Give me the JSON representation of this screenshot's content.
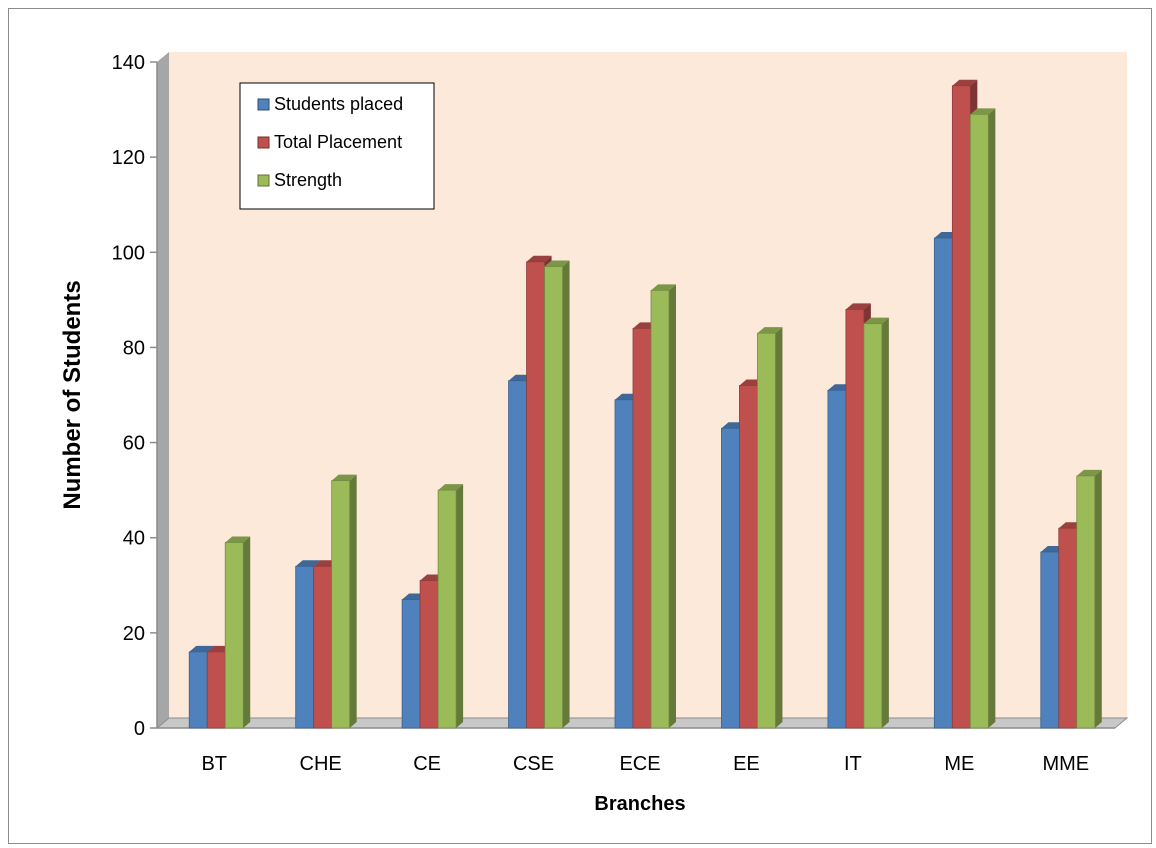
{
  "chart_data": {
    "type": "bar",
    "title": "",
    "xlabel": "Branches",
    "ylabel": "Number of Students",
    "ylim": [
      0,
      140
    ],
    "yticks": [
      0,
      20,
      40,
      60,
      80,
      100,
      120,
      140
    ],
    "categories": [
      "BT",
      "CHE",
      "CE",
      "CSE",
      "ECE",
      "EE",
      "IT",
      "ME",
      "MME"
    ],
    "series": [
      {
        "name": "Students placed",
        "color": "#4f81bd",
        "values": [
          16,
          34,
          27,
          73,
          69,
          63,
          71,
          103,
          37
        ]
      },
      {
        "name": "Total Placement",
        "color": "#c0504d",
        "values": [
          16,
          34,
          31,
          98,
          84,
          72,
          88,
          135,
          42
        ]
      },
      {
        "name": "Strength",
        "color": "#9bbb59",
        "values": [
          39,
          52,
          50,
          97,
          92,
          83,
          85,
          129,
          53
        ]
      }
    ],
    "grid": false,
    "legend_position": "top-left",
    "plot_background": "#fde9d9",
    "style": "3d-clustered-column"
  }
}
